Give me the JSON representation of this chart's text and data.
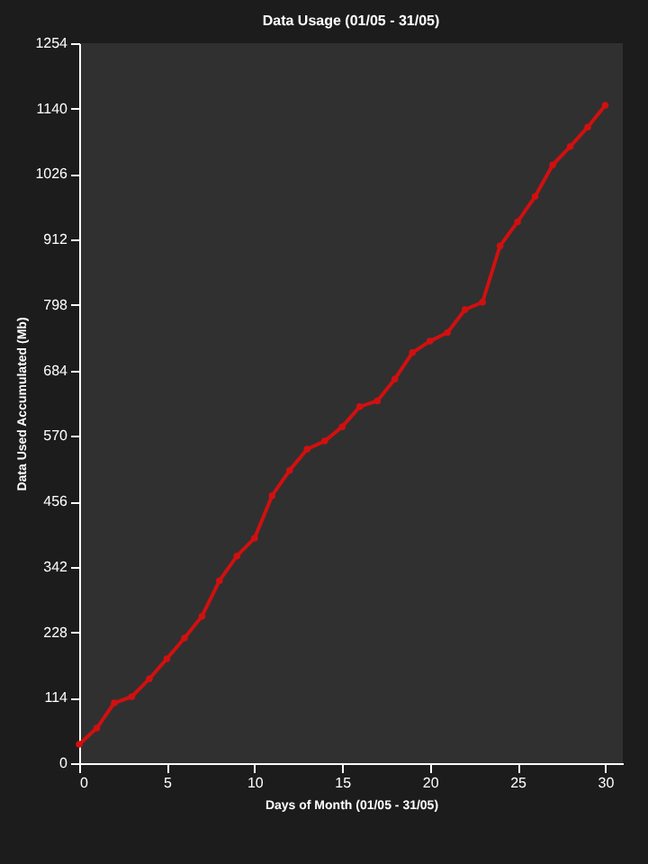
{
  "chart_data": {
    "type": "line",
    "title": "Data Usage (01/05 - 31/05)",
    "xlabel": "Days of Month (01/05 - 31/05)",
    "ylabel": "Data Used Accumulated (Mb)",
    "x": [
      0,
      1,
      2,
      3,
      4,
      5,
      6,
      7,
      8,
      9,
      10,
      11,
      12,
      13,
      14,
      15,
      16,
      17,
      18,
      19,
      20,
      21,
      22,
      23,
      24,
      25,
      26,
      27,
      28,
      29,
      30
    ],
    "series": [
      {
        "color": "#d01010",
        "values": [
          33,
          61,
          105,
          116,
          147,
          182,
          218,
          256,
          318,
          361,
          392,
          466,
          510,
          547,
          561,
          586,
          621,
          631,
          669,
          715,
          735,
          750,
          790,
          803,
          901,
          943,
          987,
          1042,
          1074,
          1108,
          1146
        ]
      }
    ],
    "xlim": [
      0,
      31
    ],
    "xticks": [
      0,
      5,
      10,
      15,
      20,
      25,
      30
    ],
    "ylim": [
      0,
      1254
    ],
    "yticks": [
      0,
      114,
      228,
      342,
      456,
      570,
      684,
      798,
      912,
      1026,
      1140,
      1254
    ],
    "grid": false,
    "legend": false,
    "marker": "circle",
    "line_style": "solid"
  }
}
